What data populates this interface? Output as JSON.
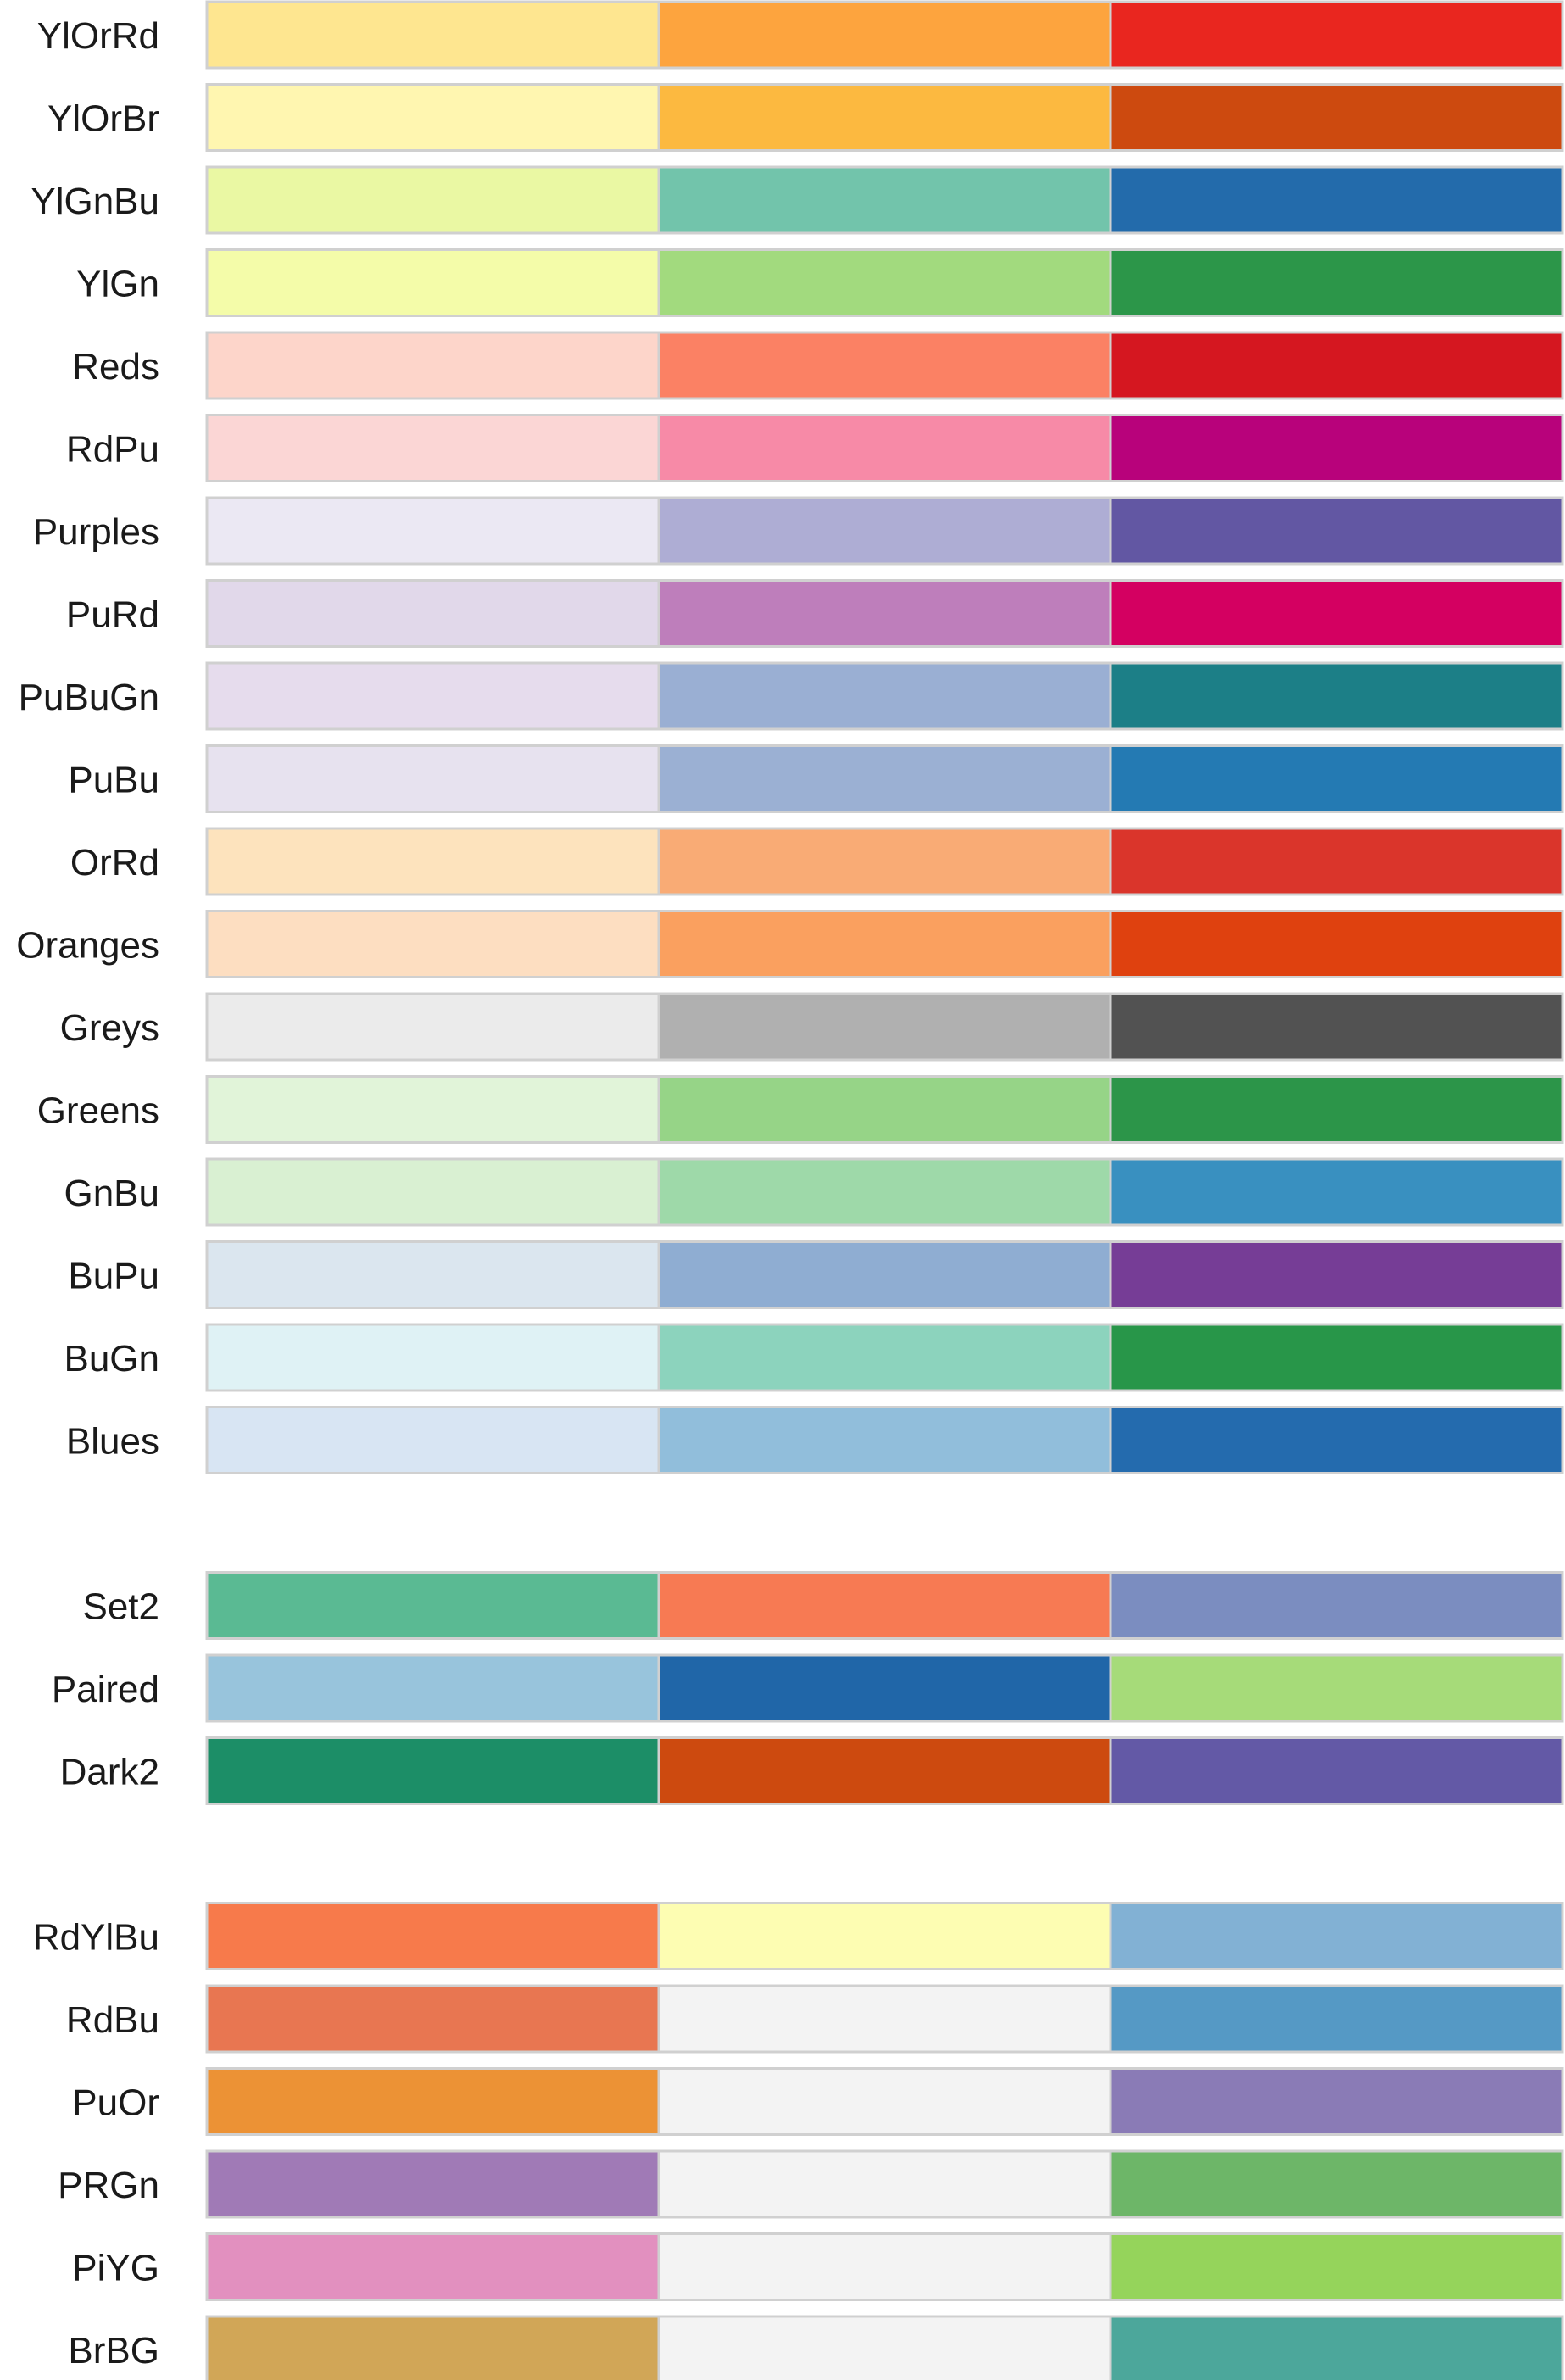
{
  "chart_data": {
    "type": "table",
    "groups": [
      {
        "kind": "sequential",
        "palettes": [
          {
            "name": "YlOrRd",
            "colors": [
              "#fee690",
              "#fda43e",
              "#e9261f"
            ]
          },
          {
            "name": "YlOrBr",
            "colors": [
              "#fff6b0",
              "#fcb940",
              "#cd4a0f"
            ]
          },
          {
            "name": "YlGnBu",
            "colors": [
              "#eaf8a3",
              "#72c4ab",
              "#236bab"
            ]
          },
          {
            "name": "YlGn",
            "colors": [
              "#f4fca9",
              "#a2da7e",
              "#2c9649"
            ]
          },
          {
            "name": "Reds",
            "colors": [
              "#fdd5ca",
              "#fb8164",
              "#d51720"
            ]
          },
          {
            "name": "RdPu",
            "colors": [
              "#fbd6d5",
              "#f78aa7",
              "#b8027b"
            ]
          },
          {
            "name": "Purples",
            "colors": [
              "#ebe8f3",
              "#aeadd4",
              "#6257a3"
            ]
          },
          {
            "name": "PuRd",
            "colors": [
              "#e1d8ea",
              "#be7ebb",
              "#d40061"
            ]
          },
          {
            "name": "PuBuGn",
            "colors": [
              "#e6dced",
              "#9aafd3",
              "#1c7f87"
            ]
          },
          {
            "name": "PuBu",
            "colors": [
              "#e7e2ef",
              "#9bb0d3",
              "#247ab3"
            ]
          },
          {
            "name": "OrRd",
            "colors": [
              "#fde3bd",
              "#f9ab75",
              "#da352b"
            ]
          },
          {
            "name": "Oranges",
            "colors": [
              "#fddec1",
              "#faa05f",
              "#df410f"
            ]
          },
          {
            "name": "Greys",
            "colors": [
              "#ebebeb",
              "#b0b0b0",
              "#525252"
            ]
          },
          {
            "name": "Greens",
            "colors": [
              "#e1f4d9",
              "#96d487",
              "#2c9549"
            ]
          },
          {
            "name": "GnBu",
            "colors": [
              "#d9f0d2",
              "#9ed9a9",
              "#3990c0"
            ]
          },
          {
            "name": "BuPu",
            "colors": [
              "#dbe6ef",
              "#8fadd2",
              "#763d96"
            ]
          },
          {
            "name": "BuGn",
            "colors": [
              "#dff2f5",
              "#8cd3bd",
              "#289649"
            ]
          },
          {
            "name": "Blues",
            "colors": [
              "#d8e5f3",
              "#91bedb",
              "#246bae"
            ]
          }
        ]
      },
      {
        "kind": "qualitative",
        "palettes": [
          {
            "name": "Set2",
            "colors": [
              "#5aba93",
              "#f77a53",
              "#7b8dc0"
            ]
          },
          {
            "name": "Paired",
            "colors": [
              "#98c4dc",
              "#2066a8",
              "#a6db79"
            ]
          },
          {
            "name": "Dark2",
            "colors": [
              "#1c8e67",
              "#cd4a0f",
              "#6359a6"
            ]
          }
        ]
      },
      {
        "kind": "diverging",
        "palettes": [
          {
            "name": "RdYlBu",
            "colors": [
              "#f77a4b",
              "#fdfdb2",
              "#82b1d4"
            ]
          },
          {
            "name": "RdBu",
            "colors": [
              "#e87651",
              "#f3f3f3",
              "#5599c5"
            ]
          },
          {
            "name": "PuOr",
            "colors": [
              "#ec9235",
              "#f3f3f3",
              "#8a7bb6"
            ]
          },
          {
            "name": "PRGn",
            "colors": [
              "#a07ab6",
              "#f3f3f3",
              "#6db668"
            ]
          },
          {
            "name": "PiYG",
            "colors": [
              "#e290bf",
              "#f3f3f3",
              "#95d45b"
            ]
          },
          {
            "name": "BrBG",
            "colors": [
              "#d1a657",
              "#f3f3f3",
              "#4ca79b"
            ]
          }
        ]
      }
    ]
  }
}
